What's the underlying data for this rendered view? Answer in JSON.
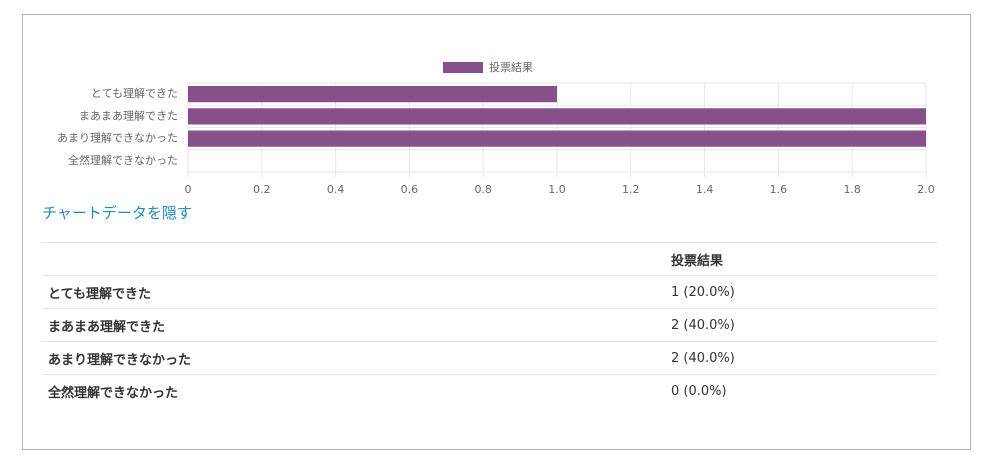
{
  "chart_data": {
    "type": "bar",
    "orientation": "horizontal",
    "categories": [
      "とても理解できた",
      "まあまあ理解できた",
      "あまり理解できなかった",
      "全然理解できなかった"
    ],
    "series": [
      {
        "name": "投票結果",
        "color": "#87508a",
        "values": [
          1,
          2,
          2,
          0
        ]
      }
    ],
    "xlim": [
      0,
      2
    ],
    "xticks": [
      0,
      0.2,
      0.4,
      0.6,
      0.8,
      {
        "value": 1,
        "label": "1.0"
      },
      1.2,
      1.4,
      1.6,
      1.8,
      {
        "value": 2,
        "label": "2.0"
      }
    ],
    "grid": true,
    "legend": "top"
  },
  "link": "チャートデータを隠す",
  "table": {
    "header": "投票結果",
    "rows": [
      [
        "とても理解できた",
        "1 (20.0%)"
      ],
      [
        "まあまあ理解できた",
        "2 (40.0%)"
      ],
      [
        "あまり理解できなかった",
        "2 (40.0%)"
      ],
      [
        "全然理解できなかった",
        "0 (0.0%)"
      ]
    ]
  }
}
